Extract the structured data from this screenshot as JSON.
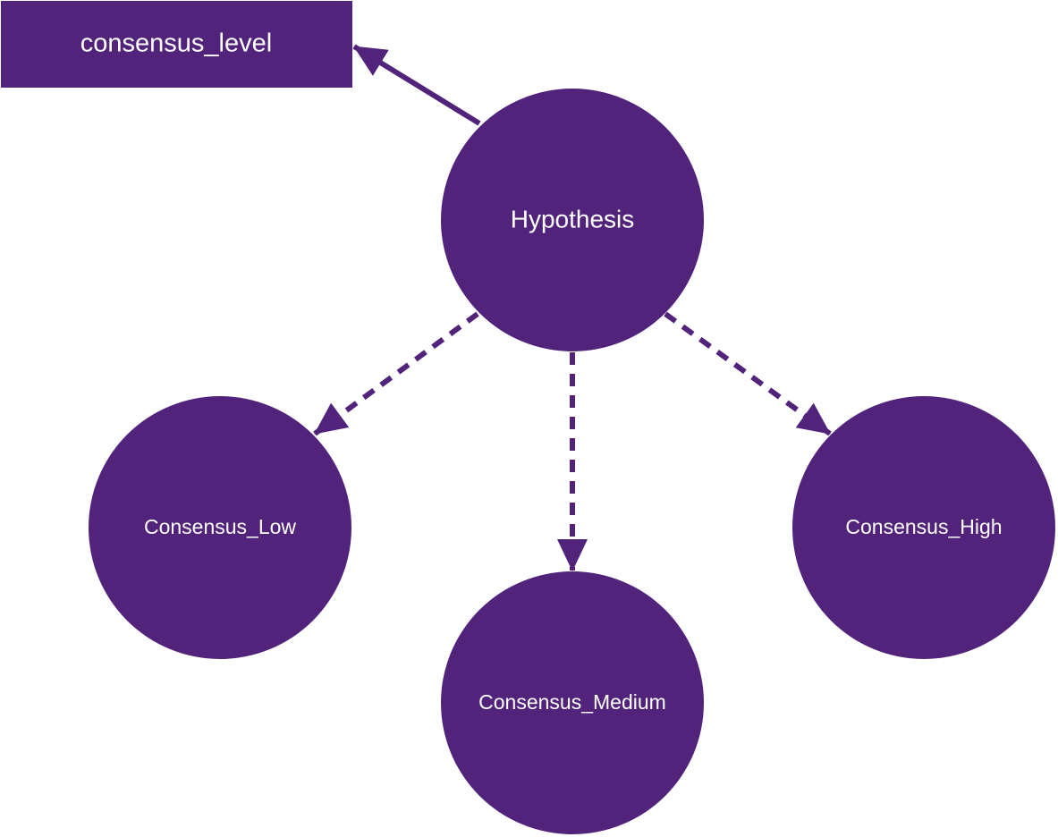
{
  "diagram": {
    "colors": {
      "node_fill": "#51237a",
      "edge_stroke": "#51237a",
      "text": "#ffffff",
      "background": "#ffffff"
    },
    "nodes": {
      "property": {
        "label": "consensus_level",
        "shape": "rectangle"
      },
      "hypothesis": {
        "label": "Hypothesis",
        "shape": "circle"
      },
      "low": {
        "label": "Consensus_Low",
        "shape": "circle"
      },
      "medium": {
        "label": "Consensus_Medium",
        "shape": "circle"
      },
      "high": {
        "label": "Consensus_High",
        "shape": "circle"
      }
    },
    "edges": [
      {
        "from": "hypothesis",
        "to": "property",
        "style": "solid"
      },
      {
        "from": "hypothesis",
        "to": "low",
        "style": "dashed"
      },
      {
        "from": "hypothesis",
        "to": "medium",
        "style": "dashed"
      },
      {
        "from": "hypothesis",
        "to": "high",
        "style": "dashed"
      }
    ]
  }
}
